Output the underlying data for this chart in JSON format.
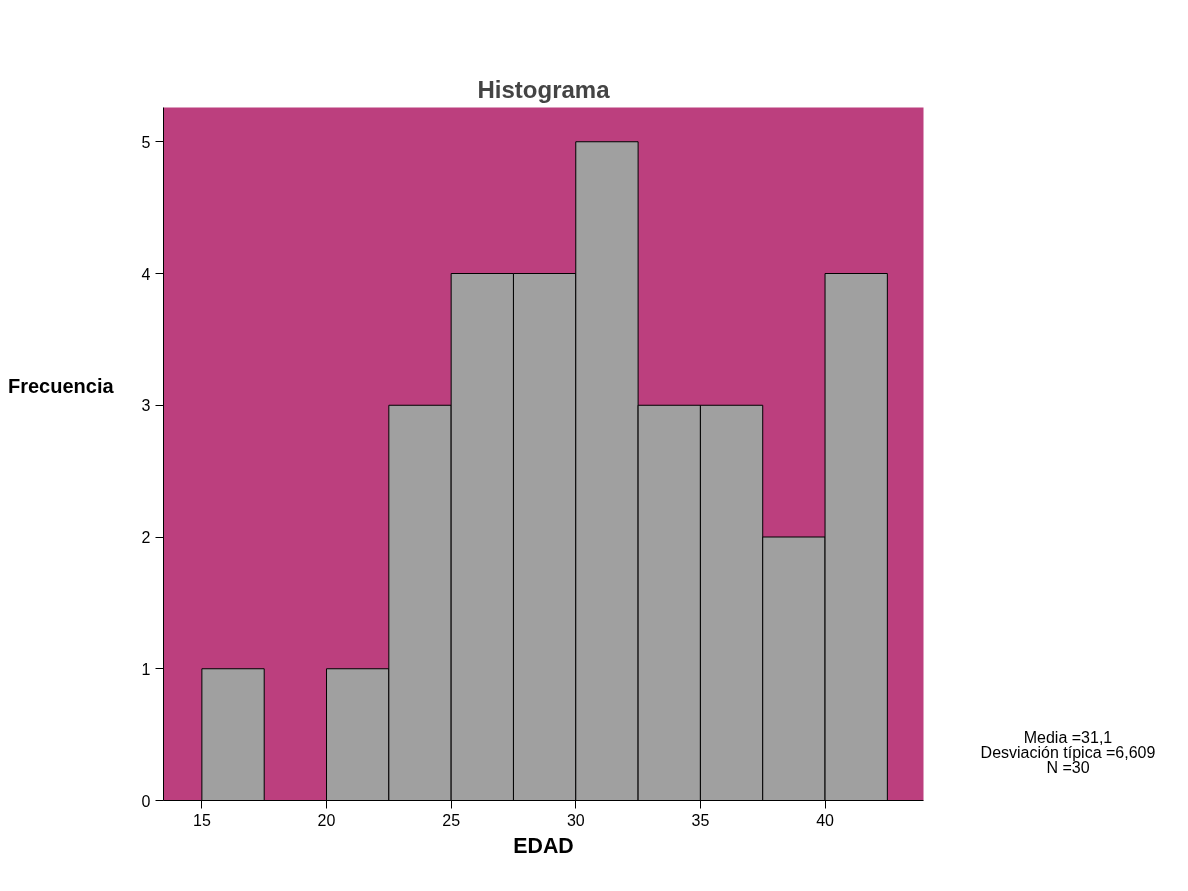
{
  "chart_data": {
    "type": "histogram",
    "title": "Histograma",
    "xlabel": "EDAD",
    "ylabel": "Frecuencia",
    "bins": [
      15,
      17.5,
      20,
      22.5,
      25,
      27.5,
      30,
      32.5,
      35,
      37.5,
      40,
      42.5
    ],
    "values": [
      1,
      0,
      1,
      3,
      4,
      4,
      5,
      3,
      3,
      2,
      4
    ],
    "color": "#a0a0a0",
    "xlim": [
      13.46,
      43.95
    ],
    "xticks": [
      15,
      20,
      25,
      30,
      35,
      40
    ],
    "ylim": [
      0,
      5.26
    ],
    "yticks": [
      0,
      1,
      2,
      3,
      4,
      5
    ],
    "grid": false,
    "annotations": [
      "Media =31,1",
      "Desviación típica =6,609",
      "N =30"
    ]
  }
}
